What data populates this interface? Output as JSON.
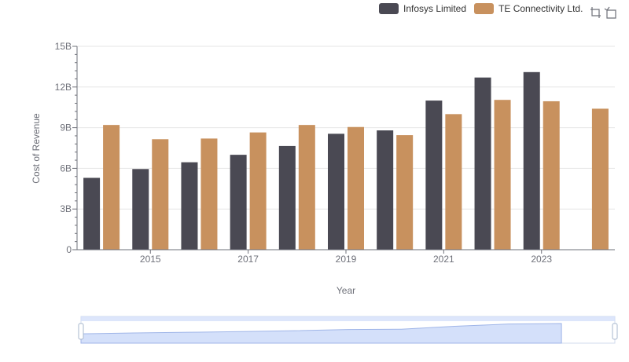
{
  "legend": {
    "series_a": "Infosys Limited",
    "series_b": "TE Connectivity Ltd."
  },
  "toolbar": {
    "zoom_icon": "zoom-icon",
    "restore_icon": "restore-icon"
  },
  "colors": {
    "infosys": "#4a4953",
    "te": "#c8915e",
    "grid": "#e6e6e6",
    "axis": "#6e7079",
    "slider_fill": "#d4e0fa",
    "slider_border": "#d2dbee"
  },
  "chart_data": {
    "type": "bar",
    "xlabel": "Year",
    "ylabel": "Cost of Revenue",
    "ylim": [
      0,
      15000000000
    ],
    "y_ticks": [
      "0",
      "3B",
      "6B",
      "9B",
      "12B",
      "15B"
    ],
    "x_tick_labels": [
      "2015",
      "2017",
      "2019",
      "2021",
      "2023"
    ],
    "categories": [
      "2014",
      "2015",
      "2016",
      "2017",
      "2018",
      "2019",
      "2020",
      "2021",
      "2022",
      "2023",
      "2024"
    ],
    "series": [
      {
        "name": "Infosys Limited",
        "values": [
          5300000000,
          5950000000,
          6450000000,
          7000000000,
          7650000000,
          8550000000,
          8800000000,
          11000000000,
          12700000000,
          13100000000,
          null
        ]
      },
      {
        "name": "TE Connectivity Ltd.",
        "values": [
          9200000000,
          8150000000,
          8200000000,
          8650000000,
          9200000000,
          9050000000,
          8450000000,
          10000000000,
          11050000000,
          10950000000,
          10400000000
        ]
      }
    ],
    "grid": true,
    "legend_position": "top-right"
  }
}
